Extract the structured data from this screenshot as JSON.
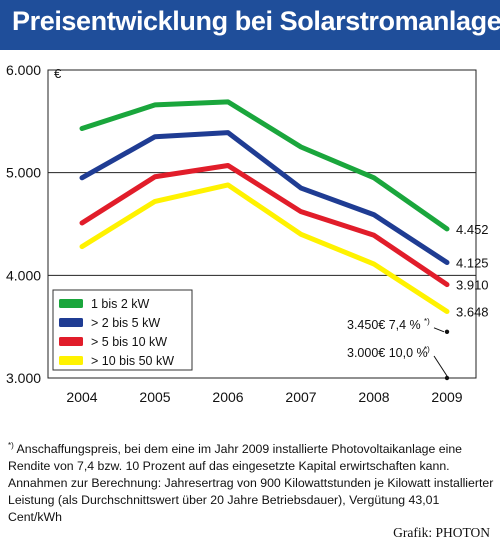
{
  "title": "Preisentwicklung bei Solarstromanlagen",
  "chart_data": {
    "type": "line",
    "categories": [
      "2004",
      "2005",
      "2006",
      "2007",
      "2008",
      "2009"
    ],
    "y_unit": "€",
    "y_ticks": [
      "3.000",
      "4.000",
      "5.000",
      "6.000"
    ],
    "ylim": [
      3000,
      6000
    ],
    "grid": "horizontal",
    "legend_placement": "bottom-left",
    "series": [
      {
        "name": "1 bis 2 kW",
        "color": "#1aa63c",
        "values": [
          5430,
          5660,
          5690,
          5250,
          4950,
          4452
        ],
        "end_label": "4.452"
      },
      {
        "name": "> 2 bis 5 kW",
        "color": "#1f3c93",
        "values": [
          4950,
          5350,
          5390,
          4850,
          4590,
          4125
        ],
        "end_label": "4.125"
      },
      {
        "name": "> 5 bis 10 kW",
        "color": "#e11d2a",
        "values": [
          4510,
          4960,
          5070,
          4620,
          4390,
          3910
        ],
        "end_label": "3.910"
      },
      {
        "name": "> 10 bis 50 kW",
        "color": "#fff200",
        "values": [
          4280,
          4720,
          4880,
          4400,
          4110,
          3648
        ],
        "end_label": "3.648"
      }
    ],
    "annotations": [
      {
        "text": "3.450€  7,4 %",
        "marker": "*)",
        "value": 3450
      },
      {
        "text": "3.000€ 10,0 %",
        "marker": "*)",
        "value": 3000
      }
    ]
  },
  "footnote": {
    "marker": "*)",
    "text": "Anschaffungspreis, bei dem eine im Jahr 2009 installierte Photovoltaikanlage eine Rendite von 7,4 bzw. 10 Prozent auf das eingesetzte Kapital erwirtschaften kann. Annahmen zur Berechnung: Jahresertrag von 900 Kilowattstunden je Kilowatt installierter Leistung (als Durchschnittswert über 20 Jahre Betriebsdauer), Vergütung 43,01 Cent/kWh"
  },
  "credit": "Grafik: PHOTON"
}
